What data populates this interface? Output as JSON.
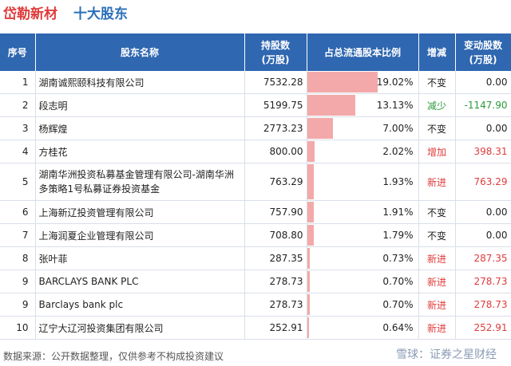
{
  "header": {
    "company": "岱勒新材",
    "title": "十大股东"
  },
  "columns": [
    "序号",
    "股东名称",
    "持股数\n(万股)",
    "占总流通股本比例",
    "增减",
    "变动股数\n(万股)"
  ],
  "rows": [
    {
      "idx": "1",
      "name": "湖南诚熙颐科技有限公司",
      "shares": "7532.28",
      "ratio": "19.02%",
      "ratio_value": 19.02,
      "change": "不变",
      "change_type": "keep",
      "delta": "0.00",
      "delta_type": "zero"
    },
    {
      "idx": "2",
      "name": "段志明",
      "shares": "5199.75",
      "ratio": "13.13%",
      "ratio_value": 13.13,
      "change": "减少",
      "change_type": "down",
      "delta": "-1147.90",
      "delta_type": "neg"
    },
    {
      "idx": "3",
      "name": "杨辉煌",
      "shares": "2773.23",
      "ratio": "7.00%",
      "ratio_value": 7.0,
      "change": "不变",
      "change_type": "keep",
      "delta": "0.00",
      "delta_type": "zero"
    },
    {
      "idx": "4",
      "name": "方桂花",
      "shares": "800.00",
      "ratio": "2.02%",
      "ratio_value": 2.02,
      "change": "增加",
      "change_type": "up",
      "delta": "398.31",
      "delta_type": "pos"
    },
    {
      "idx": "5",
      "name": "湖南华洲投资私募基金管理有限公司-湖南华洲多策略1号私募证券投资基金",
      "shares": "763.29",
      "ratio": "1.93%",
      "ratio_value": 1.93,
      "change": "新进",
      "change_type": "up",
      "delta": "763.29",
      "delta_type": "pos",
      "tall": true
    },
    {
      "idx": "6",
      "name": "上海新辽投资管理有限公司",
      "shares": "757.90",
      "ratio": "1.91%",
      "ratio_value": 1.91,
      "change": "不变",
      "change_type": "keep",
      "delta": "0.00",
      "delta_type": "zero"
    },
    {
      "idx": "7",
      "name": "上海润夏企业管理有限公司",
      "shares": "708.80",
      "ratio": "1.79%",
      "ratio_value": 1.79,
      "change": "不变",
      "change_type": "keep",
      "delta": "0.00",
      "delta_type": "zero"
    },
    {
      "idx": "8",
      "name": "张叶菲",
      "shares": "287.35",
      "ratio": "0.73%",
      "ratio_value": 0.73,
      "change": "新进",
      "change_type": "up",
      "delta": "287.35",
      "delta_type": "pos"
    },
    {
      "idx": "9",
      "name": "BARCLAYS BANK PLC",
      "shares": "278.73",
      "ratio": "0.70%",
      "ratio_value": 0.7,
      "change": "新进",
      "change_type": "up",
      "delta": "278.73",
      "delta_type": "pos"
    },
    {
      "idx": "9",
      "name": "Barclays bank plc",
      "shares": "278.73",
      "ratio": "0.70%",
      "ratio_value": 0.7,
      "change": "新进",
      "change_type": "up",
      "delta": "278.73",
      "delta_type": "pos"
    },
    {
      "idx": "10",
      "name": "辽宁大辽河投资集团有限公司",
      "shares": "252.91",
      "ratio": "0.64%",
      "ratio_value": 0.64,
      "change": "新进",
      "change_type": "up",
      "delta": "252.91",
      "delta_type": "pos"
    }
  ],
  "footer": {
    "source": "数据来源：公开数据整理，仅供参考不构成投资建议",
    "brand": "雪球：证券之星财经"
  },
  "colors": {
    "header_bg": "#2f67b0",
    "bar": "#f3a9a9",
    "up": "#e03b3b",
    "down": "#2b9a3a",
    "title_red": "#e03b3b",
    "title_blue": "#2a6fb8"
  }
}
